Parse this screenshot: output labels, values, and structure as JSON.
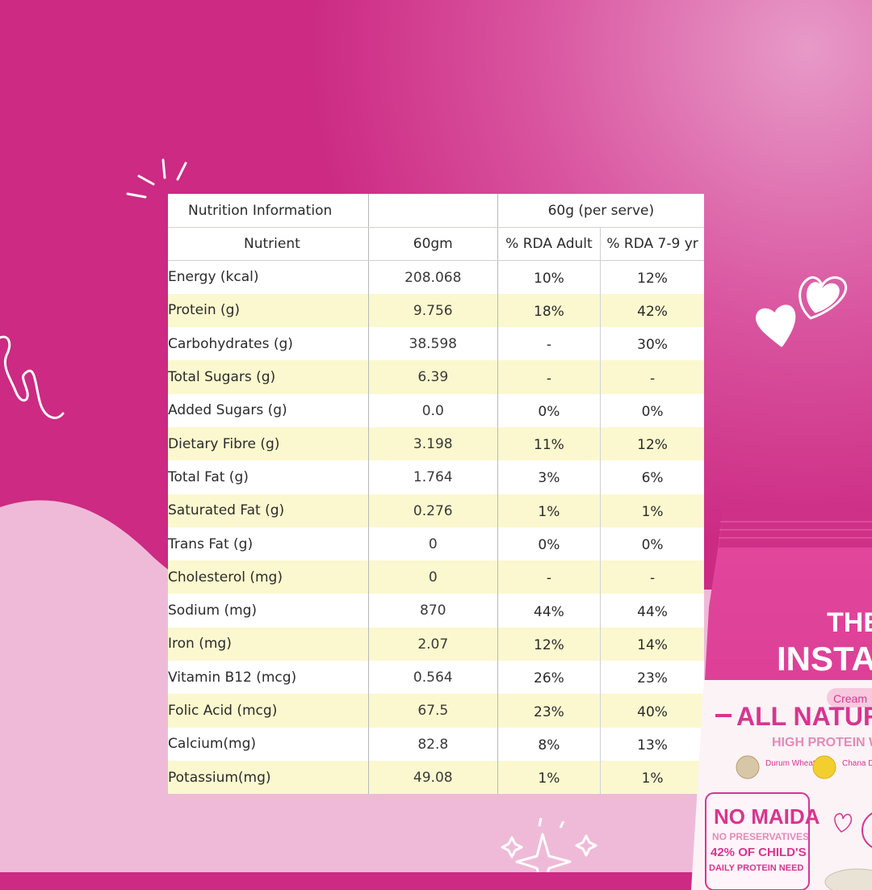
{
  "colors": {
    "magenta": "#cc2a83",
    "light_pink": "#efbad8",
    "row_highlight": "#fbf8cf",
    "pack_pink": "#e3469b"
  },
  "table": {
    "title": "Nutrition Information",
    "serve_header": "60g (per serve)",
    "columns": [
      "Nutrient",
      "60gm",
      "% RDA Adult",
      "% RDA 7-9 yr"
    ],
    "rows": [
      {
        "nutrient": "Energy (kcal)",
        "amount": "208.068",
        "rda_adult": "10%",
        "rda_child": "12%"
      },
      {
        "nutrient": "Protein (g)",
        "amount": "9.756",
        "rda_adult": "18%",
        "rda_child": "42%"
      },
      {
        "nutrient": "Carbohydrates (g)",
        "amount": "38.598",
        "rda_adult": "-",
        "rda_child": "30%"
      },
      {
        "nutrient": "Total Sugars (g)",
        "amount": "6.39",
        "rda_adult": "-",
        "rda_child": "-"
      },
      {
        "nutrient": "Added Sugars (g)",
        "amount": "0.0",
        "rda_adult": "0%",
        "rda_child": "0%"
      },
      {
        "nutrient": "Dietary Fibre (g)",
        "amount": "3.198",
        "rda_adult": "11%",
        "rda_child": "12%"
      },
      {
        "nutrient": "Total Fat (g)",
        "amount": "1.764",
        "rda_adult": "3%",
        "rda_child": "6%"
      },
      {
        "nutrient": "Saturated Fat (g)",
        "amount": "0.276",
        "rda_adult": "1%",
        "rda_child": "1%"
      },
      {
        "nutrient": "Trans Fat (g)",
        "amount": "0",
        "rda_adult": "0%",
        "rda_child": "0%"
      },
      {
        "nutrient": "Cholesterol (mg)",
        "amount": "0",
        "rda_adult": "-",
        "rda_child": "-"
      },
      {
        "nutrient": "Sodium (mg)",
        "amount": "870",
        "rda_adult": "44%",
        "rda_child": "44%"
      },
      {
        "nutrient": "Iron (mg)",
        "amount": "2.07",
        "rda_adult": "12%",
        "rda_child": "14%"
      },
      {
        "nutrient": "Vitamin B12 (mcg)",
        "amount": "0.564",
        "rda_adult": "26%",
        "rda_child": "23%"
      },
      {
        "nutrient": "Folic Acid (mcg)",
        "amount": "67.5",
        "rda_adult": "23%",
        "rda_child": "40%"
      },
      {
        "nutrient": "Calcium(mg)",
        "amount": "82.8",
        "rda_adult": "8%",
        "rda_child": "13%"
      },
      {
        "nutrient": "Potassium(mg)",
        "amount": "49.08",
        "rda_adult": "1%",
        "rda_child": "1%"
      }
    ]
  },
  "package": {
    "title_line1": "THE I",
    "title_line2": "INSTAN",
    "variant": "Cream",
    "tagline": "ALL NATURAL",
    "subtag": "HIGH PROTEIN W",
    "ingredient1": "Durum Wheat",
    "ingredient2": "Chana Dal",
    "badge_main": "NO MAIDA",
    "badge_sub": "NO PRESERVATIVES",
    "badge_protein_line1": "42% OF CHILD'S",
    "badge_protein_line2": "DAILY PROTEIN NEED"
  }
}
